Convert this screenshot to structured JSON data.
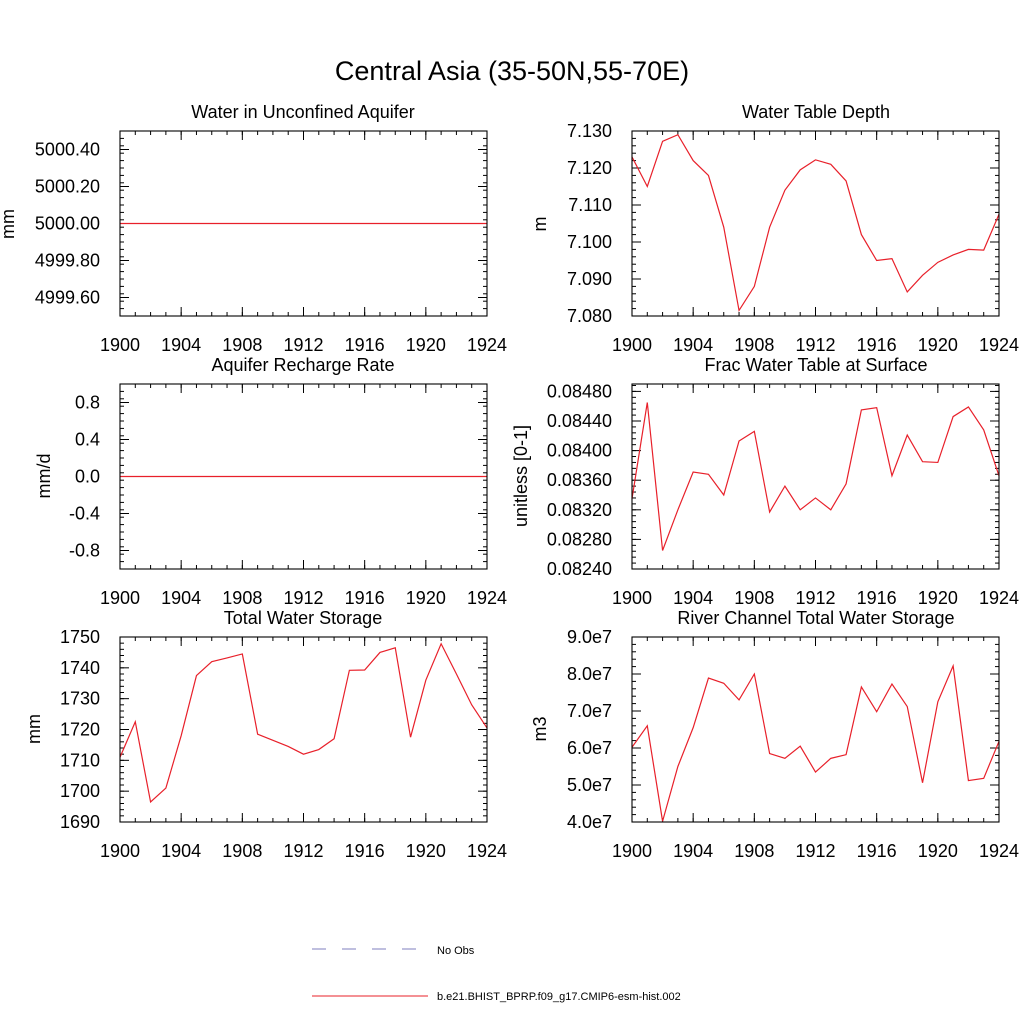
{
  "figure": {
    "title": "Central Asia (35-50N,55-70E)",
    "legend": [
      {
        "label": "No Obs",
        "style": "dashed",
        "color": "#7f7fbf"
      },
      {
        "label": "b.e21.BHIST_BPRP.f09_g17.CMIP6-esm-hist.002",
        "style": "solid",
        "color": "#e8202a"
      }
    ]
  },
  "chart_data": [
    {
      "type": "line",
      "title": "Water in Unconfined Aquifer",
      "ylabel": "mm",
      "xlim": [
        1900,
        1924
      ],
      "ylim": [
        4999.5,
        5000.5
      ],
      "x_ticks": [
        1900,
        1904,
        1908,
        1912,
        1916,
        1920,
        1924
      ],
      "y_ticks": [
        4999.6,
        4999.8,
        5000.0,
        5000.2,
        5000.4
      ],
      "y_tick_labels": [
        "4999.60",
        "4999.80",
        "5000.00",
        "5000.20",
        "5000.40"
      ],
      "x": [
        1900,
        1924
      ],
      "series": [
        {
          "color": "#e8202a",
          "values": [
            5000.0,
            5000.0
          ]
        }
      ]
    },
    {
      "type": "line",
      "title": "Water Table Depth",
      "ylabel": "m",
      "xlim": [
        1900,
        1924
      ],
      "ylim": [
        7.08,
        7.13
      ],
      "x_ticks": [
        1900,
        1904,
        1908,
        1912,
        1916,
        1920,
        1924
      ],
      "y_ticks": [
        7.08,
        7.09,
        7.1,
        7.11,
        7.12,
        7.13
      ],
      "y_tick_labels": [
        "7.080",
        "7.090",
        "7.100",
        "7.110",
        "7.120",
        "7.130"
      ],
      "x": [
        1900,
        1901,
        1902,
        1903,
        1904,
        1905,
        1906,
        1907,
        1908,
        1909,
        1910,
        1911,
        1912,
        1913,
        1914,
        1915,
        1916,
        1917,
        1918,
        1919,
        1920,
        1921,
        1922,
        1923,
        1924
      ],
      "series": [
        {
          "color": "#e8202a",
          "values": [
            7.123,
            7.115,
            7.1272,
            7.129,
            7.122,
            7.118,
            7.104,
            7.0815,
            7.088,
            7.104,
            7.114,
            7.1195,
            7.1222,
            7.121,
            7.1165,
            7.102,
            7.095,
            7.0955,
            7.0865,
            7.091,
            7.0945,
            7.0965,
            7.098,
            7.0978,
            7.1075
          ]
        }
      ]
    },
    {
      "type": "line",
      "title": "Aquifer Recharge Rate",
      "ylabel": "mm/d",
      "xlim": [
        1900,
        1924
      ],
      "ylim": [
        -1.0,
        1.0
      ],
      "x_ticks": [
        1900,
        1904,
        1908,
        1912,
        1916,
        1920,
        1924
      ],
      "y_ticks": [
        -0.8,
        -0.4,
        0.0,
        0.4,
        0.8
      ],
      "y_tick_labels": [
        "-0.8",
        "-0.4",
        "0.0",
        "0.4",
        "0.8"
      ],
      "x": [
        1900,
        1924
      ],
      "series": [
        {
          "color": "#e8202a",
          "values": [
            0.0,
            0.0
          ]
        }
      ]
    },
    {
      "type": "line",
      "title": "Frac Water Table at Surface",
      "ylabel": "unitless [0-1]",
      "xlim": [
        1900,
        1924
      ],
      "ylim": [
        0.0824,
        0.0849
      ],
      "x_ticks": [
        1900,
        1904,
        1908,
        1912,
        1916,
        1920,
        1924
      ],
      "y_ticks": [
        0.0824,
        0.0828,
        0.0832,
        0.0836,
        0.084,
        0.0844,
        0.0848
      ],
      "y_tick_labels": [
        "0.08240",
        "0.08280",
        "0.08320",
        "0.08360",
        "0.08400",
        "0.08440",
        "0.08480"
      ],
      "x": [
        1900,
        1901,
        1902,
        1903,
        1904,
        1905,
        1906,
        1907,
        1908,
        1909,
        1910,
        1911,
        1912,
        1913,
        1914,
        1915,
        1916,
        1917,
        1918,
        1919,
        1920,
        1921,
        1922,
        1923,
        1924
      ],
      "series": [
        {
          "color": "#e8202a",
          "values": [
            0.08335,
            0.08465,
            0.08265,
            0.0832,
            0.08371,
            0.08368,
            0.0834,
            0.08413,
            0.08426,
            0.08317,
            0.08352,
            0.0832,
            0.08336,
            0.0832,
            0.08355,
            0.08455,
            0.08458,
            0.08366,
            0.08421,
            0.08385,
            0.08384,
            0.08446,
            0.08459,
            0.08428,
            0.08366
          ]
        }
      ]
    },
    {
      "type": "line",
      "title": "Total Water Storage",
      "ylabel": "mm",
      "xlim": [
        1900,
        1924
      ],
      "ylim": [
        1690,
        1750
      ],
      "x_ticks": [
        1900,
        1904,
        1908,
        1912,
        1916,
        1920,
        1924
      ],
      "y_ticks": [
        1690,
        1700,
        1710,
        1720,
        1730,
        1740,
        1750
      ],
      "y_tick_labels": [
        "1690",
        "1700",
        "1710",
        "1720",
        "1730",
        "1740",
        "1750"
      ],
      "x": [
        1900,
        1901,
        1902,
        1903,
        1904,
        1905,
        1906,
        1907,
        1908,
        1909,
        1910,
        1911,
        1912,
        1913,
        1914,
        1915,
        1916,
        1917,
        1918,
        1919,
        1920,
        1921,
        1922,
        1923,
        1924
      ],
      "series": [
        {
          "color": "#e8202a",
          "values": [
            1711,
            1722.5,
            1696.5,
            1701,
            1718,
            1737.5,
            1742,
            1743.2,
            1744.5,
            1718.5,
            1716.5,
            1714.5,
            1712,
            1713.5,
            1717,
            1739.2,
            1739.3,
            1745,
            1746.5,
            1717.5,
            1736,
            1747.8,
            1738,
            1728,
            1720.5
          ]
        }
      ]
    },
    {
      "type": "line",
      "title": "River Channel Total Water Storage",
      "ylabel": "m3",
      "xlim": [
        1900,
        1924
      ],
      "ylim": [
        40000000,
        90000000
      ],
      "x_ticks": [
        1900,
        1904,
        1908,
        1912,
        1916,
        1920,
        1924
      ],
      "y_ticks": [
        40000000,
        50000000,
        60000000,
        70000000,
        80000000,
        90000000
      ],
      "y_tick_labels": [
        "4.0e7",
        "5.0e7",
        "6.0e7",
        "7.0e7",
        "8.0e7",
        "9.0e7"
      ],
      "x": [
        1900,
        1901,
        1902,
        1903,
        1904,
        1905,
        1906,
        1907,
        1908,
        1909,
        1910,
        1911,
        1912,
        1913,
        1914,
        1915,
        1916,
        1917,
        1918,
        1919,
        1920,
        1921,
        1922,
        1923,
        1924
      ],
      "series": [
        {
          "color": "#e8202a",
          "values": [
            60200000,
            66000000,
            40200000,
            55000000,
            65500000,
            78900000,
            77500000,
            73000000,
            80000000,
            58500000,
            57200000,
            60500000,
            53500000,
            57200000,
            58200000,
            76500000,
            69800000,
            77300000,
            71200000,
            50600000,
            72500000,
            82200000,
            51200000,
            51800000,
            61800000
          ]
        }
      ]
    }
  ]
}
